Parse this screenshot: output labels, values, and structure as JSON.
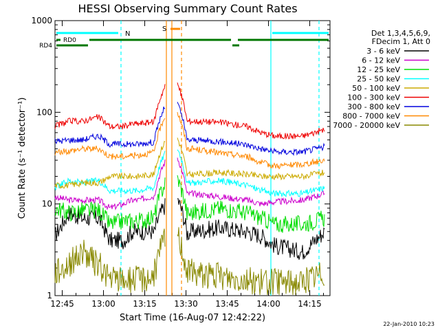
{
  "chart_data": {
    "type": "line",
    "title": "HESSI Observing Summary Count Rates",
    "xlabel": "Start Time (16-Aug-07 12:42:22)",
    "ylabel": "Count Rate (s⁻¹ detector⁻¹)",
    "yscale": "log",
    "ylim": [
      1,
      1000
    ],
    "xlim_minutes": [
      0,
      100
    ],
    "x_ticks": [
      "12:45",
      "13:00",
      "13:15",
      "13:30",
      "13:45",
      "14:00",
      "14:15"
    ],
    "y_ticks": [
      "1",
      "10",
      "100",
      "1000"
    ],
    "legend_header": [
      "Det 1,3,4,5,6,9,",
      "FDecim 1, Att 0"
    ],
    "legend_position": "right",
    "footer_date": "22-Jan-2010 10:23",
    "flag_labels": {
      "night": "N",
      "saa": "S",
      "rd0": "RD0",
      "rd4": "RD4"
    },
    "x_minutes": [
      0,
      5,
      10,
      15,
      16,
      20,
      25,
      28,
      30,
      35,
      40,
      50,
      60,
      70,
      75,
      80,
      90,
      98
    ],
    "series": [
      {
        "name": "3 - 6 keV",
        "color": "#000000",
        "values": [
          4.5,
          8,
          7,
          7,
          7,
          4,
          4,
          5,
          5,
          5,
          4,
          5,
          5.5,
          5,
          4.5,
          3.5,
          3,
          5
        ]
      },
      {
        "name": "6 - 12 keV",
        "color": "#cc00cc",
        "values": [
          12,
          11,
          11,
          11,
          11,
          9,
          10,
          11,
          11,
          12,
          12,
          13,
          12,
          11,
          10,
          10.5,
          11,
          13
        ]
      },
      {
        "name": "12 - 25 keV",
        "color": "#00dd00",
        "values": [
          9,
          8,
          8.5,
          8.5,
          8.5,
          6,
          6.5,
          6.5,
          6.5,
          7,
          7,
          8,
          9,
          8,
          7,
          6,
          6,
          7
        ]
      },
      {
        "name": "25 - 50 keV",
        "color": "#00ffff",
        "values": [
          15,
          18,
          17,
          18,
          18,
          14,
          14,
          14,
          14,
          15,
          15,
          17,
          18,
          16,
          14,
          13,
          13,
          15
        ]
      },
      {
        "name": "50 - 100 keV",
        "color": "#ccaa00",
        "values": [
          16,
          16,
          17,
          17,
          17,
          20,
          20,
          20,
          20,
          21,
          20,
          21,
          22,
          21,
          20,
          20,
          20,
          22
        ]
      },
      {
        "name": "100 - 300 keV",
        "color": "#ee0000",
        "values": [
          70,
          80,
          80,
          88,
          88,
          70,
          70,
          75,
          75,
          78,
          80,
          80,
          78,
          70,
          60,
          55,
          55,
          65
        ]
      },
      {
        "name": "300 - 800 keV",
        "color": "#0000dd",
        "values": [
          48,
          50,
          50,
          55,
          55,
          45,
          45,
          45,
          45,
          47,
          48,
          50,
          48,
          44,
          40,
          37,
          37,
          42
        ]
      },
      {
        "name": "800 - 7000 keV",
        "color": "#ff8800",
        "values": [
          36,
          38,
          40,
          40,
          40,
          33,
          33,
          34,
          34,
          36,
          38,
          40,
          36,
          33,
          28,
          26,
          27,
          30
        ]
      },
      {
        "name": "7000 - 20000 keV",
        "color": "#888800",
        "values": [
          1.8,
          2.2,
          3,
          2.2,
          2.2,
          1.5,
          1.5,
          1.5,
          1.5,
          1.6,
          1.8,
          1.8,
          1.6,
          1.5,
          1.4,
          1.4,
          1.4,
          1.8
        ]
      }
    ]
  }
}
